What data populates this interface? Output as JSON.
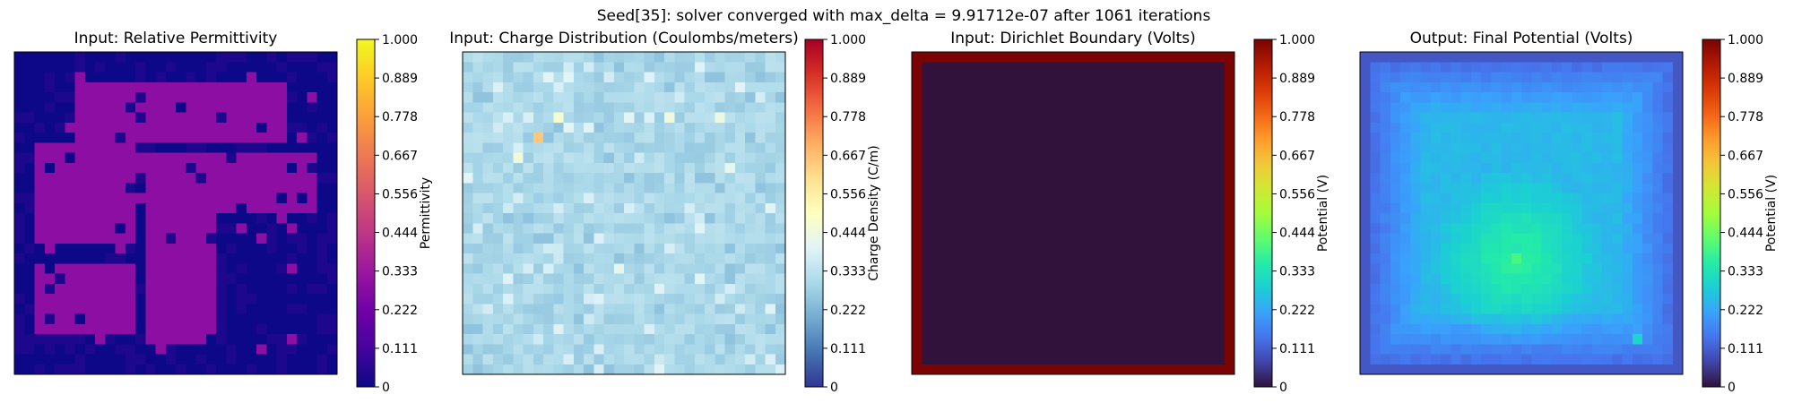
{
  "figure": {
    "suptitle": "Seed[35]: solver converged with max_delta = 9.91712e-07 after 1061 iterations"
  },
  "chart_data": [
    {
      "type": "heatmap",
      "title": "Input: Relative Permittivity",
      "colormap": "plasma",
      "colorbar_label": "Permittivity",
      "colorbar_ticks": [
        "0",
        "0.111",
        "0.222",
        "0.333",
        "0.444",
        "0.556",
        "0.667",
        "0.778",
        "0.889",
        "1.000"
      ],
      "vmin": 0,
      "vmax": 1,
      "grid_size": 32,
      "pattern": "binary mask: background ~0.0 with rough border, large blobs ~0.29 (top band, left/right lobes, central vertical stem)",
      "background_value": 0.0,
      "blob_value": 0.29
    },
    {
      "type": "heatmap",
      "title": "Input: Charge Distribution (Coulombs/meters)",
      "colormap": "RdYlBu_r",
      "colorbar_label": "Charge Density (C/m)",
      "colorbar_ticks": [
        "0",
        "0.111",
        "0.222",
        "0.333",
        "0.444",
        "0.556",
        "0.667",
        "0.778",
        "0.889",
        "1.000"
      ],
      "vmin": 0,
      "vmax": 1,
      "grid_size": 32,
      "typical_value": 0.3,
      "hotspots": [
        {
          "row": 8,
          "col": 7,
          "value": 0.65
        },
        {
          "row": 6,
          "col": 9,
          "value": 0.47
        },
        {
          "row": 10,
          "col": 5,
          "value": 0.45
        },
        {
          "row": 6,
          "col": 20,
          "value": 0.45
        },
        {
          "row": 6,
          "col": 25,
          "value": 0.44
        },
        {
          "row": 11,
          "col": 26,
          "value": 0.42
        },
        {
          "row": 21,
          "col": 15,
          "value": 0.42
        }
      ]
    },
    {
      "type": "heatmap",
      "title": "Input: Dirichlet Boundary (Volts)",
      "colormap": "turbo",
      "colorbar_label": "Potential (V)",
      "colorbar_ticks": [
        "0",
        "0.111",
        "0.222",
        "0.333",
        "0.444",
        "0.556",
        "0.667",
        "0.778",
        "0.889",
        "1.000"
      ],
      "vmin": 0,
      "vmax": 1,
      "grid_size": 32,
      "boundary_value": 1.0,
      "interior_value": 0.0
    },
    {
      "type": "heatmap",
      "title": "Output: Final Potential (Volts)",
      "colormap": "turbo",
      "colorbar_label": "Potential (V)",
      "colorbar_ticks": [
        "0",
        "0.111",
        "0.222",
        "0.333",
        "0.444",
        "0.556",
        "0.667",
        "0.778",
        "0.889",
        "1.000"
      ],
      "vmin": 0,
      "vmax": 1,
      "grid_size": 32,
      "edge_value": 0.12,
      "peak": {
        "row": 20,
        "col": 15,
        "value": 0.4
      }
    }
  ]
}
